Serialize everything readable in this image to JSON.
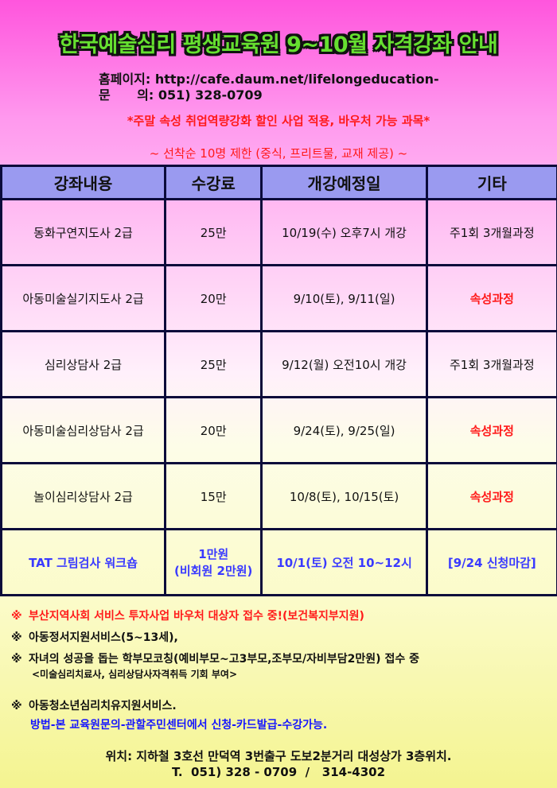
{
  "title": "한국예술심리 평생교육원 9~10월 자격강좌 안내",
  "homepage_label": "홈페이지:",
  "homepage_url": "http://cafe.daum.net/lifelongeducation-",
  "inquiry_label": "문      의:",
  "inquiry_phone": "051) 328-0709",
  "notice1": "*주말 속성 취업역량강화 할인 사업 적용, 바우처 가능 과목*",
  "notice2": "~ 선착순 10명 제한 (중식, 프리트물, 교재 제공) ~",
  "table": {
    "headers": [
      "강좌내용",
      "수강료",
      "개강예정일",
      "기타"
    ],
    "rows": [
      [
        "동화구연지도사 2급",
        "25만",
        "10/19(수) 오후7시 개강",
        "주1회 3개월과정"
      ],
      [
        "아동미술실기지도사 2급",
        "20만",
        "9/10(토), 9/11(일)",
        "속성과정"
      ],
      [
        "심리상담사 2급",
        "25만",
        "9/12(월) 오전10시 개강",
        "주1회 3개월과정"
      ],
      [
        "아동미술심리상담사 2급",
        "20만",
        "9/24(토), 9/25(일)",
        "속성과정"
      ],
      [
        "놀이심리상담사 2급",
        "15만",
        "10/8(토), 10/15(토)",
        "속성과정"
      ],
      [
        "TAT 그림검사 워크숍",
        "1만원\n(비회원 2만원)",
        "10/1(토) 오전 10~12시",
        "[9/24 신청마감]"
      ]
    ]
  },
  "notes": {
    "mark": "※",
    "n1": "부산지역사회 서비스 투자사업 바우처 대상자 접수 중!(보건복지부지원)",
    "n2": "아동정서지원서비스(5~13세),",
    "n3": "자녀의 성공을 돕는 학부모코칭(예비부모~고3부모,조부모/자비부담2만원) 접수 중",
    "n3_sub": "<미술심리치료사, 심리상담사자격취득 기회 부여>",
    "n4": "아동청소년심리치유지원서비스.",
    "n4_sub": "방법-본 교육원문의-관할주민센터에서 신청-카드발급-수강가능."
  },
  "footer": {
    "location": "위치: 지하철 3호선 만덕역 3번출구 도보2분거리 대성상가 3층위치.",
    "phone": "T.  051) 328 - 0709  /   314-4302"
  },
  "colors": {
    "title": "#66e030",
    "red": "#ff1a1a",
    "blue": "#3a3aff",
    "header_bg": "#9a9af0"
  }
}
